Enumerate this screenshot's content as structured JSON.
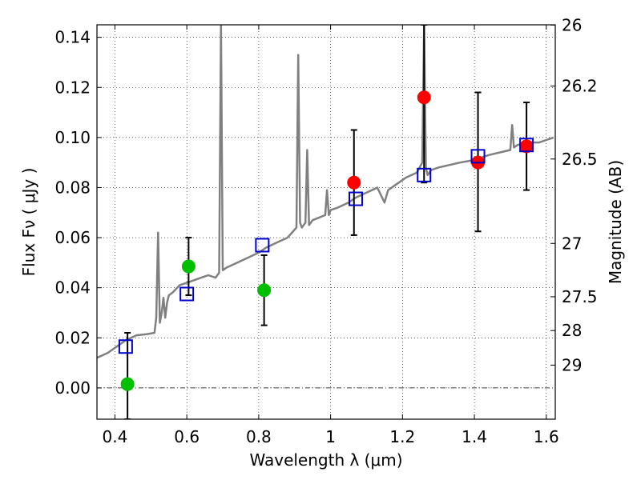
{
  "chart_data": {
    "type": "scatter",
    "title": "",
    "xlabel": "Wavelength  λ (μm)",
    "ylabel": "Flux  Fν  ( μJy )",
    "y2label": "Magnitude (AB)",
    "xlim": [
      0.35,
      1.625
    ],
    "ylim": [
      -0.0125,
      0.145
    ],
    "grid": true,
    "x_ticks": [
      {
        "value": 0.4,
        "label": "0.4"
      },
      {
        "value": 0.6,
        "label": "0.6"
      },
      {
        "value": 0.8,
        "label": "0.8"
      },
      {
        "value": 1.0,
        "label": "1"
      },
      {
        "value": 1.2,
        "label": "1.2"
      },
      {
        "value": 1.4,
        "label": "1.4"
      },
      {
        "value": 1.6,
        "label": "1.6"
      }
    ],
    "y_ticks": [
      {
        "value": 0.0,
        "label": "0.00"
      },
      {
        "value": 0.02,
        "label": "0.02"
      },
      {
        "value": 0.04,
        "label": "0.04"
      },
      {
        "value": 0.06,
        "label": "0.06"
      },
      {
        "value": 0.08,
        "label": "0.08"
      },
      {
        "value": 0.1,
        "label": "0.10"
      },
      {
        "value": 0.12,
        "label": "0.12"
      },
      {
        "value": 0.14,
        "label": "0.14"
      }
    ],
    "magnitude_ticks": [
      {
        "label": "26",
        "flux": 0.1449
      },
      {
        "label": "26.2",
        "flux": 0.1205
      },
      {
        "label": "26.5",
        "flux": 0.0914
      },
      {
        "label": "27",
        "flux": 0.0577
      },
      {
        "label": "27.5",
        "flux": 0.0364
      },
      {
        "label": "28",
        "flux": 0.0229
      },
      {
        "label": "29",
        "flux": 0.0091
      }
    ],
    "series": [
      {
        "kind": "line",
        "color": "#808080",
        "x": [
          0.35,
          0.38,
          0.4,
          0.43,
          0.46,
          0.49,
          0.51,
          0.515,
          0.52,
          0.525,
          0.53,
          0.535,
          0.54,
          0.545,
          0.55,
          0.56,
          0.58,
          0.6,
          0.62,
          0.64,
          0.66,
          0.68,
          0.69,
          0.695,
          0.7,
          0.71,
          0.74,
          0.77,
          0.8,
          0.82,
          0.85,
          0.88,
          0.905,
          0.91,
          0.915,
          0.92,
          0.93,
          0.935,
          0.94,
          0.95,
          0.985,
          0.99,
          0.995,
          1.0,
          1.02,
          1.05,
          1.07,
          1.1,
          1.13,
          1.15,
          1.16,
          1.18,
          1.21,
          1.24,
          1.255,
          1.26,
          1.265,
          1.27,
          1.28,
          1.3,
          1.33,
          1.36,
          1.4,
          1.44,
          1.47,
          1.5,
          1.505,
          1.51,
          1.52,
          1.55,
          1.58,
          1.6,
          1.62
        ],
        "y": [
          0.012,
          0.014,
          0.016,
          0.019,
          0.021,
          0.0215,
          0.022,
          0.028,
          0.062,
          0.026,
          0.03,
          0.036,
          0.028,
          0.034,
          0.037,
          0.038,
          0.041,
          0.042,
          0.043,
          0.044,
          0.045,
          0.044,
          0.046,
          0.145,
          0.047,
          0.048,
          0.05,
          0.052,
          0.054,
          0.056,
          0.058,
          0.06,
          0.064,
          0.133,
          0.066,
          0.064,
          0.066,
          0.095,
          0.065,
          0.067,
          0.069,
          0.079,
          0.069,
          0.071,
          0.072,
          0.074,
          0.076,
          0.078,
          0.08,
          0.074,
          0.079,
          0.081,
          0.084,
          0.086,
          0.09,
          0.145,
          0.088,
          0.085,
          0.087,
          0.088,
          0.089,
          0.09,
          0.091,
          0.093,
          0.094,
          0.095,
          0.105,
          0.096,
          0.097,
          0.098,
          0.098,
          0.099,
          0.1
        ]
      },
      {
        "kind": "markers",
        "marker": "circle",
        "color": "#00bf00",
        "x": [
          0.435,
          0.605,
          0.815
        ],
        "y": [
          0.0015,
          0.0485,
          0.039
        ],
        "yerr_low": [
          -0.0125,
          0.037,
          0.025
        ],
        "yerr_high": [
          0.022,
          0.06,
          0.053
        ]
      },
      {
        "kind": "markers",
        "marker": "circle",
        "color": "#ff0000",
        "x": [
          1.065,
          1.26,
          1.41,
          1.545
        ],
        "y": [
          0.082,
          0.116,
          0.09,
          0.0965
        ],
        "yerr_low": [
          0.061,
          0.082,
          0.0625,
          0.079
        ],
        "yerr_high": [
          0.103,
          0.145,
          0.118,
          0.114
        ]
      },
      {
        "kind": "markers",
        "marker": "square-open",
        "color": "#0000cc",
        "x": [
          0.43,
          0.6,
          0.81,
          1.07,
          1.26,
          1.41,
          1.545
        ],
        "y": [
          0.0165,
          0.0375,
          0.057,
          0.0755,
          0.085,
          0.0925,
          0.097
        ]
      }
    ]
  }
}
